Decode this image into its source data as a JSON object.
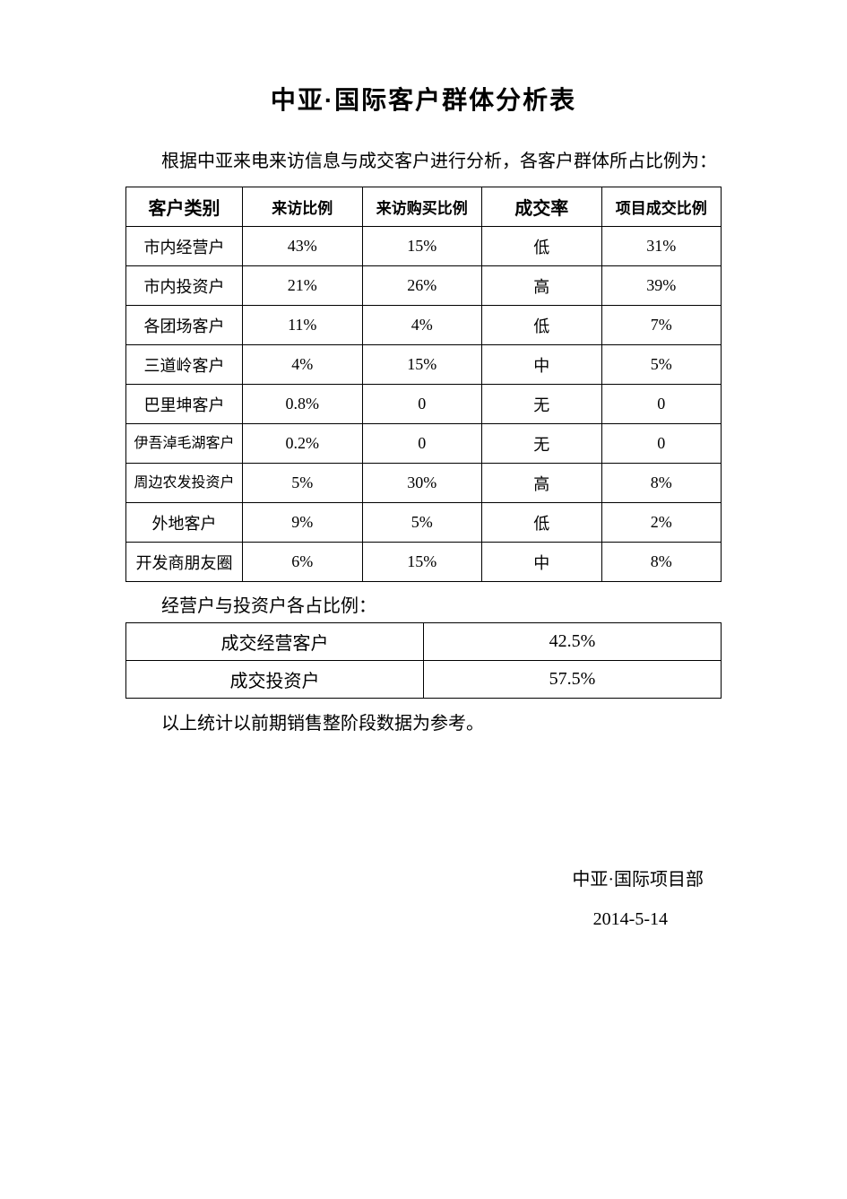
{
  "title": "中亚·国际客户群体分析表",
  "intro": "根据中亚来电来访信息与成交客户进行分析，各客户群体所占比例为：",
  "mainTable": {
    "headers": [
      "客户类别",
      "来访比例",
      "来访购买比例",
      "成交率",
      "项目成交比例"
    ],
    "rows": [
      {
        "cat": "市内经营户",
        "visit": "43%",
        "buy": "15%",
        "rate": "低",
        "deal": "31%",
        "small": "false"
      },
      {
        "cat": "市内投资户",
        "visit": "21%",
        "buy": "26%",
        "rate": "高",
        "deal": "39%",
        "small": "false"
      },
      {
        "cat": "各团场客户",
        "visit": "11%",
        "buy": "4%",
        "rate": "低",
        "deal": "7%",
        "small": "false"
      },
      {
        "cat": "三道岭客户",
        "visit": "4%",
        "buy": "15%",
        "rate": "中",
        "deal": "5%",
        "small": "false"
      },
      {
        "cat": "巴里坤客户",
        "visit": "0.8%",
        "buy": "0",
        "rate": "无",
        "deal": "0",
        "small": "false"
      },
      {
        "cat": "伊吾淖毛湖客户",
        "visit": "0.2%",
        "buy": "0",
        "rate": "无",
        "deal": "0",
        "small": "true"
      },
      {
        "cat": "周边农发投资户",
        "visit": "5%",
        "buy": "30%",
        "rate": "高",
        "deal": "8%",
        "small": "true"
      },
      {
        "cat": "外地客户",
        "visit": "9%",
        "buy": "5%",
        "rate": "低",
        "deal": "2%",
        "small": "false"
      },
      {
        "cat": "开发商朋友圈",
        "visit": "6%",
        "buy": "15%",
        "rate": "中",
        "deal": "8%",
        "small": "false"
      }
    ]
  },
  "subhead": "经营户与投资户各占比例：",
  "subTable": {
    "rows": [
      {
        "label": "成交经营客户",
        "value": "42.5%"
      },
      {
        "label": "成交投资户",
        "value": "57.5%"
      }
    ]
  },
  "note": "以上统计以前期销售整阶段数据为参考。",
  "signature": "中亚·国际项目部",
  "date": "2014-5-14"
}
